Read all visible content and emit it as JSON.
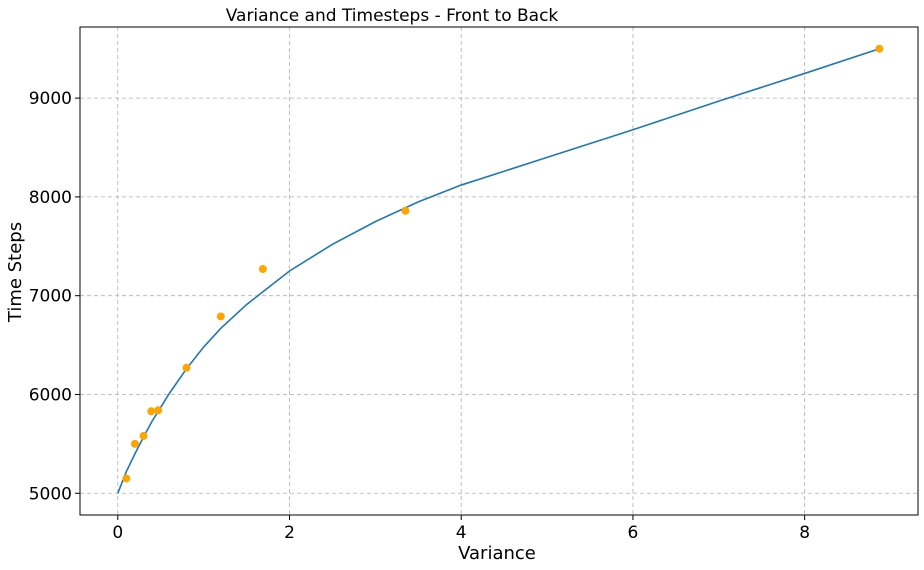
{
  "chart_data": {
    "type": "scatter",
    "title": "Variance and Timesteps - Front to Back",
    "xlabel": "Variance",
    "ylabel": "Time Steps",
    "xlim": [
      -0.44,
      9.32
    ],
    "ylim": [
      4780,
      9720
    ],
    "xticks": [
      0,
      2,
      4,
      6,
      8
    ],
    "yticks": [
      5000,
      6000,
      7000,
      8000,
      9000
    ],
    "grid": true,
    "colors": {
      "points": "#ffa500",
      "fit": "#1f77b4",
      "grid": "#b0b0b0"
    },
    "points": {
      "x": [
        0.1,
        0.2,
        0.3,
        0.39,
        0.47,
        0.8,
        1.2,
        1.69,
        3.35,
        8.87
      ],
      "y": [
        5150,
        5500,
        5580,
        5830,
        5840,
        6270,
        6790,
        7270,
        7860,
        9500
      ]
    },
    "fit_curve": {
      "x": [
        0,
        0.1,
        0.2,
        0.3,
        0.4,
        0.5,
        0.6,
        0.8,
        1.0,
        1.2,
        1.5,
        2.0,
        2.5,
        3.0,
        3.5,
        4.0,
        5.0,
        6.0,
        7.0,
        8.0,
        8.87
      ],
      "y": [
        5000,
        5220,
        5400,
        5570,
        5730,
        5870,
        6010,
        6260,
        6480,
        6670,
        6910,
        7250,
        7520,
        7750,
        7950,
        8120,
        8400,
        8680,
        8970,
        9250,
        9500
      ]
    }
  }
}
